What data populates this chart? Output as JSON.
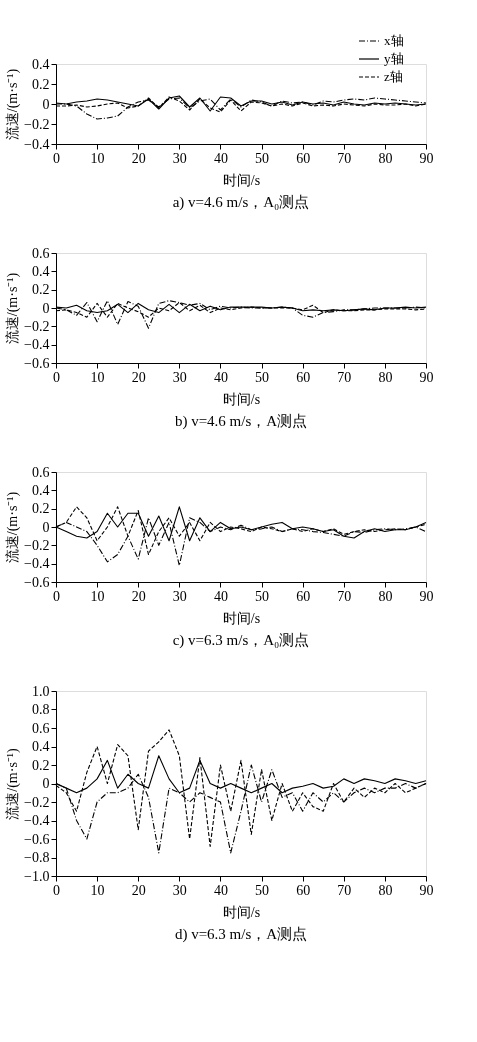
{
  "chart_data": [
    {
      "type": "line",
      "title": "a) v=4.6 m/s，A₀测点",
      "xlabel": "时间/s",
      "ylabel": "流速/(m·s⁻¹)",
      "legend": "top right",
      "grid": false,
      "xlim": [
        0,
        90
      ],
      "xticks": [
        0,
        10,
        20,
        30,
        40,
        50,
        60,
        70,
        80,
        90
      ],
      "ylim": [
        -0.4,
        0.4
      ],
      "yticks": [
        {
          "value": -0.4,
          "label": "−0.4"
        },
        {
          "value": -0.2,
          "label": "−0.2"
        },
        0,
        0.2,
        0.4
      ],
      "x": [
        0,
        2.5,
        5,
        7.5,
        10,
        12.5,
        15,
        17.5,
        20,
        22.5,
        25,
        27.5,
        30,
        32.5,
        35,
        37.5,
        40,
        42.5,
        45,
        47.5,
        50,
        52.5,
        55,
        57.5,
        60,
        62.5,
        65,
        67.5,
        70,
        72.5,
        75,
        77.5,
        80,
        82.5,
        85,
        87.5,
        90
      ],
      "series": [
        {
          "name": "x轴",
          "color": "#000000",
          "line_style": "dashdot",
          "values": [
            0,
            0,
            -0.02,
            -0.1,
            -0.15,
            -0.14,
            -0.12,
            -0.03,
            0.02,
            0.04,
            -0.03,
            0.05,
            0.06,
            -0.04,
            0.03,
            0.05,
            -0.06,
            0.05,
            -0.03,
            0.04,
            0.02,
            -0.02,
            0.03,
            0.01,
            0.02,
            -0.01,
            0.03,
            0.02,
            0.04,
            0.05,
            0.04,
            0.06,
            0.05,
            0.04,
            0.03,
            0.02,
            0.01
          ]
        },
        {
          "name": "y轴",
          "color": "#000000",
          "line_style": "solid",
          "values": [
            0.01,
            0.0,
            0.02,
            0.03,
            0.05,
            0.04,
            0.02,
            0.0,
            -0.02,
            0.05,
            -0.05,
            0.06,
            0.08,
            -0.03,
            0.06,
            -0.07,
            0.07,
            0.06,
            -0.02,
            0.03,
            0.03,
            0.0,
            0.02,
            -0.01,
            0.02,
            0.0,
            0.01,
            -0.01,
            0.02,
            0.0,
            -0.01,
            0.01,
            0.0,
            0.01,
            0.0,
            -0.01,
            0.0
          ]
        },
        {
          "name": "z轴",
          "color": "#000000",
          "line_style": "dashed",
          "values": [
            -0.02,
            -0.02,
            -0.01,
            -0.03,
            -0.02,
            0.0,
            0.01,
            -0.04,
            -0.02,
            0.06,
            -0.04,
            0.07,
            0.03,
            -0.06,
            0.05,
            -0.04,
            -0.08,
            0.04,
            -0.07,
            0.02,
            0.01,
            -0.02,
            0.0,
            -0.02,
            0.01,
            -0.02,
            -0.01,
            -0.02,
            0.0,
            -0.01,
            -0.02,
            0.0,
            -0.01,
            -0.01,
            0.0,
            -0.02,
            0.0
          ]
        }
      ]
    },
    {
      "type": "line",
      "title": "b) v=4.6 m/s，A测点",
      "xlabel": "时间/s",
      "ylabel": "流速/(m·s⁻¹)",
      "legend": "top right",
      "grid": false,
      "xlim": [
        0,
        90
      ],
      "xticks": [
        0,
        10,
        20,
        30,
        40,
        50,
        60,
        70,
        80,
        90
      ],
      "ylim": [
        -0.6,
        0.6
      ],
      "yticks": [
        {
          "value": -0.6,
          "label": "−0.6"
        },
        {
          "value": -0.4,
          "label": "−0.4"
        },
        {
          "value": -0.2,
          "label": "−0.2"
        },
        0,
        0.2,
        0.4,
        0.6
      ],
      "x": [
        0,
        2.5,
        5,
        7.5,
        10,
        12.5,
        15,
        17.5,
        20,
        22.5,
        25,
        27.5,
        30,
        32.5,
        35,
        37.5,
        40,
        42.5,
        45,
        47.5,
        50,
        52.5,
        55,
        57.5,
        60,
        62.5,
        65,
        67.5,
        70,
        72.5,
        75,
        77.5,
        80,
        82.5,
        85,
        87.5,
        90
      ],
      "series": [
        {
          "name": "x轴",
          "color": "#000000",
          "line_style": "dashdot",
          "values": [
            0,
            -0.02,
            -0.08,
            0.06,
            -0.15,
            0.08,
            -0.18,
            0.07,
            0.02,
            -0.22,
            0.05,
            0.08,
            0.06,
            0.03,
            0.05,
            -0.02,
            0.02,
            0.0,
            0.01,
            0.0,
            0.0,
            0.0,
            0.01,
            0.0,
            -0.08,
            -0.1,
            -0.05,
            -0.04,
            -0.02,
            -0.02,
            -0.01,
            0.0,
            0.0,
            0.0,
            0.0,
            0.01,
            0.0
          ]
        },
        {
          "name": "y轴",
          "color": "#000000",
          "line_style": "solid",
          "values": [
            0.01,
            0.0,
            0.03,
            -0.03,
            -0.05,
            -0.03,
            0.04,
            -0.05,
            0.05,
            -0.02,
            -0.05,
            0.04,
            -0.05,
            0.04,
            -0.03,
            0.02,
            -0.02,
            0.01,
            0.01,
            0.01,
            0.01,
            0.0,
            0.01,
            0.0,
            -0.03,
            -0.02,
            -0.03,
            -0.02,
            -0.03,
            -0.02,
            -0.01,
            -0.02,
            0.0,
            0.0,
            0.01,
            0.0,
            0.01
          ]
        },
        {
          "name": "z轴",
          "color": "#000000",
          "line_style": "dashed",
          "values": [
            -0.03,
            -0.02,
            -0.05,
            -0.1,
            0.05,
            -0.1,
            0.05,
            0.0,
            -0.04,
            -0.1,
            0.0,
            -0.03,
            0.06,
            -0.03,
            0.03,
            -0.05,
            0.0,
            -0.02,
            0.0,
            0.01,
            0.0,
            0.0,
            0.0,
            0.0,
            -0.02,
            0.03,
            -0.05,
            -0.02,
            -0.03,
            -0.03,
            -0.02,
            -0.02,
            -0.01,
            -0.01,
            -0.01,
            -0.02,
            -0.01
          ]
        }
      ]
    },
    {
      "type": "line",
      "title": "c) v=6.3 m/s，A₀测点",
      "xlabel": "时间/s",
      "ylabel": "流速/(m·s⁻¹)",
      "legend": "top right",
      "grid": false,
      "xlim": [
        0,
        90
      ],
      "xticks": [
        0,
        10,
        20,
        30,
        40,
        50,
        60,
        70,
        80,
        90
      ],
      "ylim": [
        -0.6,
        0.6
      ],
      "yticks": [
        {
          "value": -0.6,
          "label": "−0.6"
        },
        {
          "value": -0.4,
          "label": "−0.4"
        },
        {
          "value": -0.2,
          "label": "−0.2"
        },
        0,
        0.2,
        0.4,
        0.6
      ],
      "x": [
        0,
        2.5,
        5,
        7.5,
        10,
        12.5,
        15,
        17.5,
        20,
        22.5,
        25,
        27.5,
        30,
        32.5,
        35,
        37.5,
        40,
        42.5,
        45,
        47.5,
        50,
        52.5,
        55,
        57.5,
        60,
        62.5,
        65,
        67.5,
        70,
        72.5,
        75,
        77.5,
        80,
        82.5,
        85,
        87.5,
        90
      ],
      "series": [
        {
          "name": "x轴",
          "color": "#000000",
          "line_style": "dashdot",
          "values": [
            0.0,
            0.05,
            0.0,
            -0.05,
            -0.2,
            -0.38,
            -0.3,
            -0.1,
            -0.35,
            0.1,
            -0.2,
            0.05,
            -0.42,
            0.1,
            0.05,
            -0.05,
            0.0,
            -0.03,
            0.02,
            -0.03,
            -0.02,
            0.0,
            -0.05,
            -0.02,
            -0.03,
            -0.05,
            -0.06,
            -0.08,
            -0.1,
            -0.05,
            -0.06,
            -0.03,
            -0.02,
            -0.03,
            -0.02,
            0.0,
            -0.05
          ]
        },
        {
          "name": "y轴",
          "color": "#000000",
          "line_style": "solid",
          "values": [
            0.0,
            -0.05,
            -0.1,
            -0.12,
            -0.05,
            0.15,
            0.0,
            0.15,
            0.15,
            -0.1,
            0.12,
            -0.15,
            0.22,
            -0.15,
            0.1,
            -0.05,
            0.05,
            -0.02,
            0.0,
            -0.03,
            0.0,
            0.03,
            0.05,
            -0.02,
            0.0,
            -0.02,
            -0.05,
            -0.03,
            -0.1,
            -0.12,
            -0.05,
            -0.02,
            -0.05,
            -0.03,
            -0.03,
            0.0,
            0.05
          ]
        },
        {
          "name": "z轴",
          "color": "#000000",
          "line_style": "dashed",
          "values": [
            0.0,
            0.05,
            0.22,
            0.1,
            -0.15,
            0.0,
            0.22,
            -0.1,
            0.18,
            -0.3,
            -0.05,
            0.1,
            -0.1,
            0.05,
            -0.15,
            0.05,
            -0.05,
            0.0,
            -0.02,
            -0.05,
            0.0,
            -0.02,
            -0.05,
            -0.02,
            -0.05,
            -0.02,
            -0.05,
            -0.02,
            -0.08,
            -0.05,
            -0.03,
            -0.05,
            -0.03,
            -0.02,
            -0.03,
            0.0,
            0.03
          ]
        }
      ]
    },
    {
      "type": "line",
      "title": "d) v=6.3 m/s，A测点",
      "xlabel": "时间/s",
      "ylabel": "流速/(m·s⁻¹)",
      "legend": "top right",
      "grid": false,
      "xlim": [
        0,
        90
      ],
      "xticks": [
        0,
        10,
        20,
        30,
        40,
        50,
        60,
        70,
        80,
        90
      ],
      "ylim": [
        -1,
        1
      ],
      "yticks": [
        {
          "value": -1,
          "label": "−1.0"
        },
        {
          "value": -0.8,
          "label": "−0.8"
        },
        {
          "value": -0.6,
          "label": "−0.6"
        },
        {
          "value": -0.4,
          "label": "−0.4"
        },
        {
          "value": -0.2,
          "label": "−0.2"
        },
        0,
        0.2,
        0.4,
        0.6,
        0.8,
        {
          "value": 1,
          "label": "1.0"
        }
      ],
      "x": [
        0,
        2.5,
        5,
        7.5,
        10,
        12.5,
        15,
        17.5,
        20,
        22.5,
        25,
        27.5,
        30,
        32.5,
        35,
        37.5,
        40,
        42.5,
        45,
        47.5,
        50,
        52.5,
        55,
        57.5,
        60,
        62.5,
        65,
        67.5,
        70,
        72.5,
        75,
        77.5,
        80,
        82.5,
        85,
        87.5,
        90
      ],
      "series": [
        {
          "name": "x轴",
          "color": "#000000",
          "line_style": "dashdot",
          "values": [
            0.0,
            -0.05,
            -0.4,
            -0.6,
            -0.2,
            -0.1,
            -0.1,
            -0.05,
            0.1,
            -0.15,
            -0.75,
            -0.05,
            -0.1,
            -0.2,
            -0.1,
            -0.15,
            -0.2,
            -0.75,
            -0.3,
            0.2,
            -0.2,
            0.15,
            -0.15,
            -0.1,
            -0.3,
            -0.1,
            -0.2,
            -0.1,
            -0.2,
            -0.1,
            -0.05,
            -0.1,
            -0.05,
            -0.05,
            0.0,
            -0.05,
            0.0
          ]
        },
        {
          "name": "y轴",
          "color": "#000000",
          "line_style": "solid",
          "values": [
            0.0,
            -0.05,
            -0.1,
            -0.05,
            0.05,
            0.25,
            -0.05,
            0.1,
            0.0,
            -0.05,
            0.3,
            0.05,
            -0.1,
            -0.05,
            0.25,
            0.0,
            -0.05,
            0.0,
            -0.05,
            -0.1,
            -0.05,
            0.0,
            -0.1,
            -0.05,
            -0.03,
            0.0,
            -0.05,
            -0.03,
            0.05,
            0.0,
            0.05,
            0.03,
            0.0,
            0.05,
            0.03,
            0.0,
            0.03
          ]
        },
        {
          "name": "z轴",
          "color": "#000000",
          "line_style": "dashed",
          "values": [
            -0.02,
            -0.1,
            -0.3,
            0.12,
            0.4,
            0.0,
            0.42,
            0.3,
            -0.5,
            0.35,
            0.45,
            0.58,
            0.3,
            -0.6,
            0.28,
            -0.68,
            0.2,
            -0.3,
            0.25,
            -0.55,
            0.15,
            -0.4,
            0.0,
            -0.3,
            -0.1,
            -0.25,
            -0.3,
            0.0,
            -0.2,
            -0.05,
            -0.15,
            -0.05,
            -0.1,
            0.0,
            -0.1,
            -0.05,
            0.0
          ]
        }
      ]
    }
  ]
}
